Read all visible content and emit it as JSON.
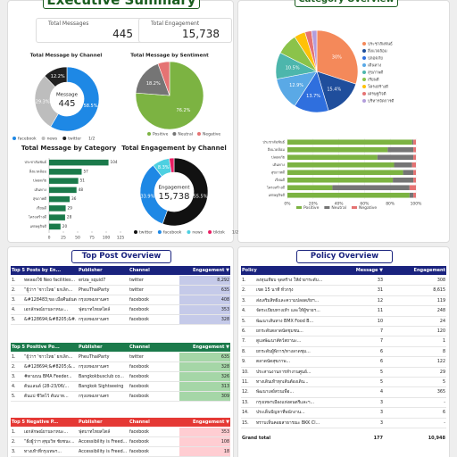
{
  "summary": {
    "title": "Executive Summary",
    "kpis": [
      {
        "label": "Total Messages",
        "value": "445"
      },
      {
        "label": "Total Engagement",
        "value": "15,738"
      }
    ]
  },
  "chart_data": [
    {
      "type": "donut",
      "title": "Total Message by Channel",
      "annotations": [
        "Message",
        "445"
      ],
      "categories": [
        "facebook",
        "news",
        "twitter"
      ],
      "values": [
        58.5,
        29.3,
        12.2
      ],
      "value_labels": [
        "58.5%",
        "29.3%",
        "12.2%"
      ],
      "colors": [
        "#1e88e5",
        "#bdbdbd",
        "#212121"
      ],
      "legend_page": "1/2"
    },
    {
      "type": "pie",
      "title": "Total Message by Sentiment",
      "categories": [
        "Positive",
        "Neutral",
        "Negative"
      ],
      "values": [
        76.2,
        18.2,
        5.6
      ],
      "value_labels": [
        "76.2%",
        "18.2%",
        null
      ],
      "colors": [
        "#7cb342",
        "#757575",
        "#e57373"
      ]
    },
    {
      "type": "barh",
      "title": "Total Message by Category",
      "categories": [
        "ประชาสัมพันธ์",
        "สิ่งแวดล้อม",
        "ปลอดภัย",
        "เดินทาง",
        "สุขภาพดี",
        "เรียนดี",
        "โครงสร้างดี",
        "เศรษฐกิจดี"
      ],
      "values": [
        104,
        57,
        51,
        48,
        36,
        29,
        28,
        20
      ],
      "color": "#1b7a4b",
      "xlim": [
        0,
        125
      ],
      "xticks": [
        0,
        25,
        50,
        75,
        100,
        125
      ]
    },
    {
      "type": "donut",
      "title": "Total Engagement by Channel",
      "annotations": [
        "Engagement",
        "15,738"
      ],
      "categories": [
        "twitter",
        "facebook",
        "news",
        "tiktok"
      ],
      "values": [
        55.5,
        33.9,
        8.3,
        2.3
      ],
      "value_labels": [
        "55.5%",
        "33.9%",
        "8.3%",
        null
      ],
      "colors": [
        "#111111",
        "#1e88e5",
        "#4dd0e1",
        "#e91e63"
      ],
      "legend_page": "1/2"
    },
    {
      "type": "pie",
      "title": "Category Overview",
      "categories": [
        "ประชาสัมพันธ์",
        "สิ่งแวดล้อม",
        "ปลอดภัย",
        "เดินทาง",
        "สุขภาพดี",
        "เรียนดี",
        "โครงสร้างดี",
        "เศรษฐกิจดี",
        "บริหารจัดการดี"
      ],
      "values": [
        30,
        15.4,
        13.7,
        12.9,
        10.5,
        8.4,
        4.4,
        2.6,
        2.1
      ],
      "value_labels": [
        "30%",
        "15.4%",
        "13.7%",
        "12.9%",
        "10.5%",
        null,
        null,
        null,
        null
      ],
      "colors": [
        "#f4895a",
        "#1f4e9c",
        "#2f6fde",
        "#5aa9e6",
        "#4db6ac",
        "#8bc34a",
        "#ffc107",
        "#e57373",
        "#b39ddb"
      ]
    },
    {
      "type": "stacked-barh",
      "categories": [
        "ประชาสัมพันธ์",
        "สิ่งแวดล้อม",
        "ปลอดภัย",
        "เดินทาง",
        "สุขภาพดี",
        "เรียนดี",
        "โครงสร้างดี",
        "เศรษฐกิจดี"
      ],
      "series": [
        {
          "name": "Positive",
          "color": "#7cb342",
          "values": [
            97,
            78,
            70,
            83,
            90,
            82,
            35,
            95
          ]
        },
        {
          "name": "Neutral",
          "color": "#757575",
          "values": [
            1,
            20,
            28,
            14,
            8,
            16,
            60,
            3
          ]
        },
        {
          "name": "Negative",
          "color": "#e57373",
          "values": [
            2,
            2,
            2,
            3,
            2,
            2,
            5,
            2
          ]
        }
      ],
      "xlim": [
        0,
        100
      ],
      "xticks": [
        {
          "value": 0,
          "label": "0%"
        },
        {
          "value": 20,
          "label": "20%"
        },
        {
          "value": 40,
          "label": "40%"
        },
        {
          "value": 60,
          "label": "60%"
        },
        {
          "value": 80,
          "label": "80%"
        },
        {
          "value": 100,
          "label": "100%"
        }
      ]
    }
  ],
  "top_post_overview": {
    "title": "Top Post Overview",
    "tables": [
      {
        "header_color": "#1a237e",
        "accent_color": "#c5cae9",
        "headers": [
          "Top 5 Posts by En...",
          "Publisher",
          "Channel",
          "Engagement ▼"
        ],
        "rows": [
          [
            "1.",
            "ทดลองใช้ Neo facilities...",
            "eriza_squid7",
            "twitter",
            "8,292"
          ],
          [
            "2.",
            "“ผู้ว่าฯ ‘ชาวไทย’ ยกเลิก...",
            "PheuThaiParty",
            "twitter",
            "635"
          ],
          [
            "3.",
            "&#128483;ขอ เมื่อคืนฝนตก...",
            "กรุงเทพมหานคร",
            "facebook",
            "408"
          ],
          [
            "4.",
            "เอกลักษณ์ยานพาหนะ...",
            "ฟุตบาทไทยสไตล์",
            "facebook",
            "353"
          ],
          [
            "5.",
            "&#128694;&#8205;&#...",
            "กรุงเทพมหานคร",
            "facebook",
            "328"
          ]
        ]
      },
      {
        "header_color": "#1b7a4b",
        "accent_color": "#a5d6a7",
        "headers": [
          "Top 5 Positive Po...",
          "Publisher",
          "Channel",
          "Engagement ▼"
        ],
        "rows": [
          [
            "1.",
            "“ผู้ว่าฯ ‘ชาวไทย’ ยกเลิก...",
            "PheuThaiParty",
            "twitter",
            "635"
          ],
          [
            "2.",
            "&#128694;&#8205;&...",
            "กรุงเทพมหานคร",
            "facebook",
            "328"
          ],
          [
            "3.",
            "#ตามบน BMA Feeder...",
            "Bangkokbusclub co...",
            "facebook",
            "326"
          ],
          [
            "4.",
            "ต้นแลนด์ (28-23/06/...",
            "Bangkok Sightseeing",
            "facebook",
            "313"
          ],
          [
            "5.",
            "ต้นแบ่ ชีวิตไว้ ต้นบาท...",
            "กรุงเทพมหานคร",
            "facebook",
            "309"
          ]
        ]
      },
      {
        "header_color": "#e53935",
        "accent_color": "#ffcdd2",
        "headers": [
          "Top 5 Negative P...",
          "Publisher",
          "Channel",
          "Engagement ▼"
        ],
        "rows": [
          [
            "1.",
            "เอกลักษณ์ยานพาหนะ...",
            "ฟุตบาทไทยสไตล์",
            "facebook",
            "353"
          ],
          [
            "2.",
            "“ฝั่งผู้ว่าฯ สุขุมวิท ชัยชนะ...",
            "Accessibility is Freed...",
            "facebook",
            "108"
          ],
          [
            "3.",
            "ทางเท้าที่กรุงเทพฯ...",
            "Accessibility is Freed...",
            "facebook",
            "18"
          ]
        ]
      }
    ]
  },
  "policy_overview": {
    "title": "Policy Overview",
    "header_color": "#1a237e",
    "headers": [
      "Policy",
      "Message ▼",
      "Engagement"
    ],
    "rows": [
      [
        "1.",
        "ลงทุนเทียบ จุดสร้าง ให้ฝ่ายฯระดับ...",
        "33",
        "308"
      ],
      [
        "2.",
        "เขต 15 นาที ทั่วกรุง",
        "31",
        "8,615"
      ],
      [
        "3.",
        "ส่งเสริมสิทธิและความปลอดภัยฯ...",
        "12",
        "119"
      ],
      [
        "4.",
        "จัดระเบียบทางเท้า และให้ผู้ขายฯ...",
        "11",
        "248"
      ],
      [
        "5.",
        "พัฒนาเส้นทาง BMX Food B...",
        "10",
        "24"
      ],
      [
        "6.",
        "ยกระดับตลาดนัดชุมชน...",
        "7",
        "120"
      ],
      [
        "7.",
        "ดูแลพัฒนาสัตว์สถานะ...",
        "7",
        "1"
      ],
      [
        "8.",
        "ยกระดับผู้พิการ/ทางลาดชุม...",
        "6",
        "8"
      ],
      [
        "9.",
        "ตลาดนัดสุขภาพ...",
        "6",
        "122"
      ],
      [
        "10.",
        "ประสานงานการทำงานศูนย์...",
        "5",
        "29"
      ],
      [
        "11.",
        "ทางเดินเท้าทุกเส้นต้องเดิน...",
        "5",
        "5"
      ],
      [
        "12.",
        "พัฒนาเลย์สวนเพื่อ...",
        "4",
        "365"
      ],
      [
        "13.",
        "กรุงเทพฯเมืองแห่งดนตรีและฯ...",
        "3",
        "-"
      ],
      [
        "14.",
        "ประเด็นปัญหาที่พนักงาน...",
        "3",
        "6"
      ],
      [
        "15.",
        "ทราบเห็นคอยสาธารณะ BKK Cl...",
        "3",
        "-"
      ]
    ],
    "total": [
      "Grand total",
      "177",
      "10,948"
    ]
  }
}
